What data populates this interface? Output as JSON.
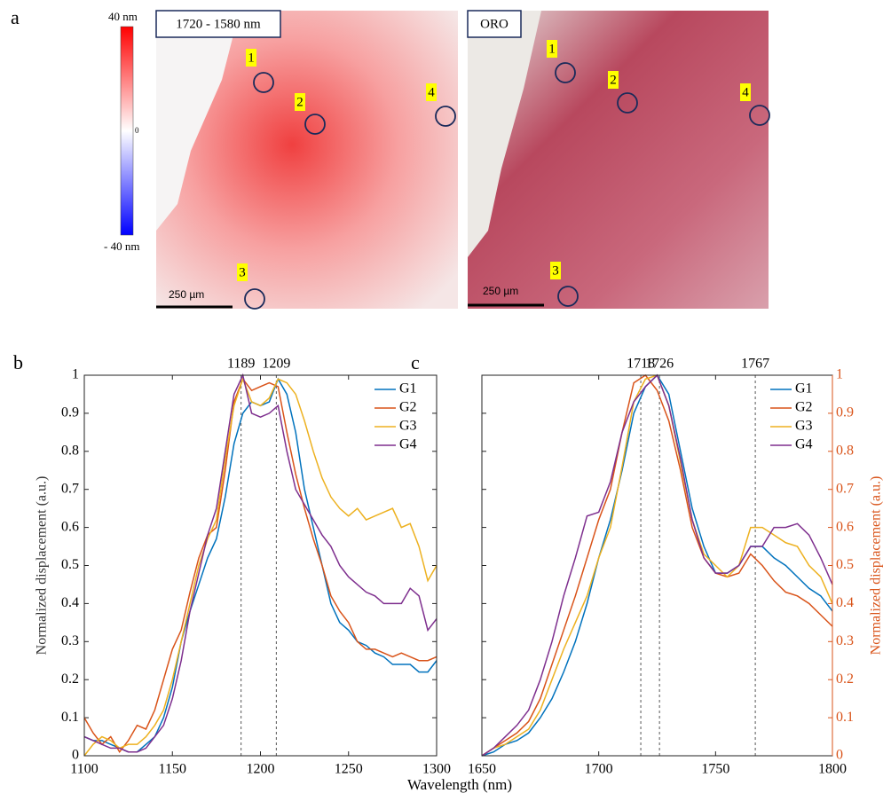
{
  "panel_a": {
    "label": "a",
    "image1_title": "1720 - 1580 nm",
    "image2_title": "ORO",
    "colorbar_labels": [
      "40 nm",
      "0",
      "- 40 nm"
    ],
    "image1_markers": [
      "1",
      "2",
      "3",
      "4"
    ],
    "image2_markers": [
      "1",
      "2",
      "3",
      "4"
    ],
    "scale_bars": [
      "250 µm",
      "250 µm"
    ]
  },
  "shared_xlabel": "Wavelength (nm)",
  "chart_data": [
    {
      "type": "line",
      "label": "b",
      "ylabel": "Normalized displacement (a.u.)",
      "x": [
        1100,
        1105,
        1110,
        1115,
        1120,
        1125,
        1130,
        1135,
        1140,
        1145,
        1150,
        1155,
        1160,
        1165,
        1170,
        1175,
        1180,
        1185,
        1190,
        1195,
        1200,
        1205,
        1210,
        1215,
        1220,
        1225,
        1230,
        1235,
        1240,
        1245,
        1250,
        1255,
        1260,
        1265,
        1270,
        1275,
        1280,
        1285,
        1290,
        1295,
        1300
      ],
      "xlim": [
        1100,
        1300
      ],
      "xticks": [
        1100,
        1150,
        1200,
        1250,
        1300
      ],
      "ylim": [
        0,
        1
      ],
      "yticks": [
        0,
        0.1,
        0.2,
        0.3,
        0.4,
        0.5,
        0.6,
        0.7,
        0.8,
        0.9,
        1
      ],
      "vlines": [
        1189,
        1209
      ],
      "legend": "top-right",
      "series": [
        {
          "name": "G1",
          "color": "#0072bd",
          "values": [
            0.05,
            0.04,
            0.04,
            0.03,
            0.02,
            0.01,
            0.01,
            0.03,
            0.05,
            0.1,
            0.18,
            0.3,
            0.38,
            0.45,
            0.52,
            0.57,
            0.68,
            0.82,
            0.9,
            0.93,
            0.92,
            0.93,
            0.99,
            0.95,
            0.85,
            0.7,
            0.6,
            0.5,
            0.4,
            0.35,
            0.33,
            0.3,
            0.29,
            0.27,
            0.26,
            0.24,
            0.24,
            0.24,
            0.22,
            0.22,
            0.25
          ]
        },
        {
          "name": "G2",
          "color": "#d95319",
          "values": [
            0.1,
            0.06,
            0.03,
            0.05,
            0.01,
            0.04,
            0.08,
            0.07,
            0.12,
            0.2,
            0.28,
            0.33,
            0.43,
            0.52,
            0.58,
            0.6,
            0.75,
            0.93,
            0.99,
            0.96,
            0.97,
            0.98,
            0.97,
            0.85,
            0.74,
            0.65,
            0.57,
            0.5,
            0.42,
            0.38,
            0.35,
            0.3,
            0.28,
            0.28,
            0.27,
            0.26,
            0.27,
            0.26,
            0.25,
            0.25,
            0.26
          ]
        },
        {
          "name": "G3",
          "color": "#edb120",
          "values": [
            0.0,
            0.03,
            0.05,
            0.04,
            0.02,
            0.03,
            0.03,
            0.05,
            0.08,
            0.12,
            0.2,
            0.3,
            0.4,
            0.5,
            0.57,
            0.62,
            0.78,
            0.92,
            0.99,
            0.93,
            0.92,
            0.94,
            0.99,
            0.98,
            0.95,
            0.88,
            0.8,
            0.73,
            0.68,
            0.65,
            0.63,
            0.65,
            0.62,
            0.63,
            0.64,
            0.65,
            0.6,
            0.61,
            0.55,
            0.46,
            0.5
          ]
        },
        {
          "name": "G4",
          "color": "#7e2f8e",
          "values": [
            0.05,
            0.04,
            0.03,
            0.02,
            0.02,
            0.01,
            0.01,
            0.02,
            0.05,
            0.08,
            0.15,
            0.25,
            0.38,
            0.48,
            0.58,
            0.65,
            0.8,
            0.95,
            1.0,
            0.9,
            0.89,
            0.9,
            0.92,
            0.8,
            0.7,
            0.66,
            0.62,
            0.58,
            0.55,
            0.5,
            0.47,
            0.45,
            0.43,
            0.42,
            0.4,
            0.4,
            0.4,
            0.44,
            0.42,
            0.33,
            0.36
          ]
        }
      ]
    },
    {
      "type": "line",
      "label": "c",
      "y2label": "Normalized displacement (a.u.)",
      "y2color": "#d95319",
      "x": [
        1650,
        1655,
        1660,
        1665,
        1670,
        1675,
        1680,
        1685,
        1690,
        1695,
        1700,
        1705,
        1710,
        1715,
        1720,
        1725,
        1730,
        1735,
        1740,
        1745,
        1750,
        1755,
        1760,
        1765,
        1770,
        1775,
        1780,
        1785,
        1790,
        1795,
        1800
      ],
      "xlim": [
        1650,
        1800
      ],
      "xticks": [
        1650,
        1700,
        1750,
        1800
      ],
      "y2lim": [
        0,
        1
      ],
      "y2ticks": [
        0,
        0.1,
        0.2,
        0.3,
        0.4,
        0.5,
        0.6,
        0.7,
        0.8,
        0.9,
        1
      ],
      "vlines": [
        1718,
        1726,
        1767
      ],
      "legend": "top-right",
      "series": [
        {
          "name": "G1",
          "color": "#0072bd",
          "axis": "y2",
          "values": [
            0.0,
            0.01,
            0.03,
            0.04,
            0.06,
            0.1,
            0.15,
            0.22,
            0.3,
            0.4,
            0.52,
            0.62,
            0.75,
            0.9,
            0.97,
            1.0,
            0.95,
            0.8,
            0.65,
            0.55,
            0.48,
            0.48,
            0.5,
            0.55,
            0.55,
            0.52,
            0.5,
            0.47,
            0.44,
            0.42,
            0.38
          ]
        },
        {
          "name": "G2",
          "color": "#d95319",
          "axis": "y2",
          "values": [
            0.0,
            0.02,
            0.04,
            0.06,
            0.09,
            0.15,
            0.24,
            0.33,
            0.42,
            0.52,
            0.62,
            0.7,
            0.85,
            0.98,
            1.0,
            0.96,
            0.88,
            0.75,
            0.6,
            0.52,
            0.48,
            0.47,
            0.48,
            0.53,
            0.5,
            0.46,
            0.43,
            0.42,
            0.4,
            0.37,
            0.34
          ]
        },
        {
          "name": "G3",
          "color": "#edb120",
          "axis": "y2",
          "values": [
            0.0,
            0.02,
            0.03,
            0.05,
            0.07,
            0.12,
            0.2,
            0.28,
            0.35,
            0.42,
            0.52,
            0.6,
            0.76,
            0.93,
            0.99,
            1.0,
            0.92,
            0.77,
            0.62,
            0.53,
            0.5,
            0.47,
            0.5,
            0.6,
            0.6,
            0.58,
            0.56,
            0.55,
            0.5,
            0.47,
            0.4
          ]
        },
        {
          "name": "G4",
          "color": "#7e2f8e",
          "axis": "y2",
          "values": [
            0.0,
            0.02,
            0.05,
            0.08,
            0.12,
            0.2,
            0.3,
            0.42,
            0.52,
            0.63,
            0.64,
            0.72,
            0.85,
            0.93,
            0.97,
            1.0,
            0.92,
            0.78,
            0.62,
            0.52,
            0.48,
            0.48,
            0.5,
            0.55,
            0.55,
            0.6,
            0.6,
            0.61,
            0.58,
            0.52,
            0.45
          ]
        }
      ]
    }
  ]
}
